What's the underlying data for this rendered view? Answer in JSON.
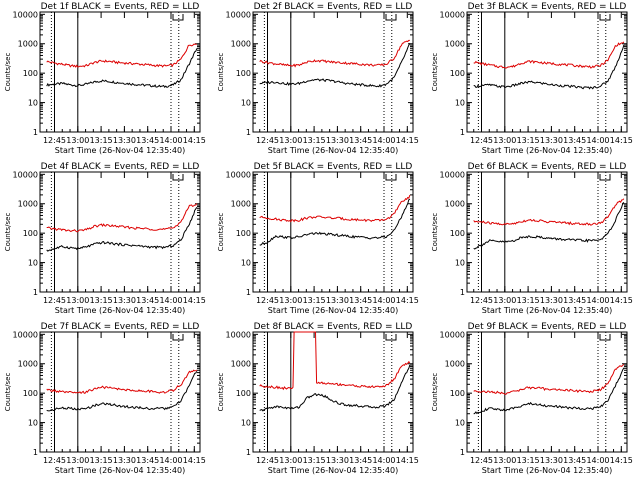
{
  "figure": {
    "background": "#ffffff",
    "colors": {
      "events": "#000000",
      "lld": "#dd0000",
      "axes": "#000000"
    }
  },
  "chart_data": [
    {
      "type": "line",
      "title": "Det 1f BLACK = Events, RED = LLD",
      "xlabel": "Start Time (26-Nov-04 12:35:40)",
      "ylabel": "Counts/sec",
      "x_ticks": [
        "12:45",
        "13:00",
        "13:15",
        "13:30",
        "13:45",
        "14:00",
        "14:15"
      ],
      "y_ticks": [
        "1",
        "10",
        "100",
        "1000",
        "10000"
      ],
      "yscale": "log",
      "ylim": [
        1,
        12000
      ],
      "xlim_minutes": [
        0,
        103
      ],
      "series": [
        {
          "name": "Events",
          "color": "#000000",
          "values": [
            40,
            42,
            45,
            40,
            38,
            42,
            50,
            55,
            52,
            48,
            45,
            42,
            40,
            38,
            36,
            35,
            40,
            60,
            200,
            700
          ]
        },
        {
          "name": "LLD",
          "color": "#dd0000",
          "values": [
            250,
            220,
            200,
            180,
            170,
            180,
            230,
            260,
            250,
            230,
            220,
            210,
            200,
            190,
            180,
            175,
            190,
            300,
            900,
            1000
          ]
        }
      ],
      "solid_lines": [
        "12:45",
        "13:00"
      ],
      "dotted_lines": [
        "12:43",
        "14:00",
        "14:05"
      ],
      "spike": null
    },
    {
      "type": "line",
      "title": "Det 2f BLACK = Events, RED = LLD",
      "xlabel": "Start Time (26-Nov-04 12:35:40)",
      "ylabel": "Counts/sec",
      "x_ticks": [
        "12:45",
        "13:00",
        "13:15",
        "13:30",
        "13:45",
        "14:00",
        "14:15"
      ],
      "y_ticks": [
        "1",
        "10",
        "100",
        "1000",
        "10000"
      ],
      "yscale": "log",
      "ylim": [
        1,
        12000
      ],
      "xlim_minutes": [
        0,
        103
      ],
      "series": [
        {
          "name": "Events",
          "color": "#000000",
          "values": [
            45,
            48,
            50,
            45,
            42,
            45,
            55,
            60,
            58,
            55,
            50,
            45,
            42,
            40,
            38,
            36,
            42,
            70,
            250,
            1000
          ]
        },
        {
          "name": "LLD",
          "color": "#dd0000",
          "values": [
            260,
            230,
            210,
            190,
            180,
            190,
            240,
            270,
            260,
            240,
            230,
            220,
            210,
            200,
            190,
            185,
            200,
            320,
            1000,
            1300
          ]
        }
      ],
      "solid_lines": [
        "12:45",
        "13:00"
      ],
      "dotted_lines": [
        "12:43",
        "14:00",
        "14:05"
      ],
      "spike": null
    },
    {
      "type": "line",
      "title": "Det 3f BLACK = Events, RED = LLD",
      "xlabel": "Start Time (26-Nov-04 12:35:40)",
      "ylabel": "Counts/sec",
      "x_ticks": [
        "12:45",
        "13:00",
        "13:15",
        "13:30",
        "13:45",
        "14:00",
        "14:15"
      ],
      "y_ticks": [
        "1",
        "10",
        "100",
        "1000",
        "10000"
      ],
      "yscale": "log",
      "ylim": [
        1,
        12000
      ],
      "xlim_minutes": [
        0,
        103
      ],
      "series": [
        {
          "name": "Events",
          "color": "#000000",
          "values": [
            35,
            38,
            40,
            36,
            34,
            38,
            45,
            50,
            48,
            44,
            40,
            38,
            36,
            34,
            32,
            32,
            36,
            55,
            180,
            900
          ]
        },
        {
          "name": "LLD",
          "color": "#dd0000",
          "values": [
            240,
            210,
            190,
            170,
            160,
            170,
            220,
            250,
            240,
            220,
            210,
            200,
            190,
            180,
            170,
            165,
            180,
            280,
            900,
            1100
          ]
        }
      ],
      "solid_lines": [
        "12:45",
        "13:00"
      ],
      "dotted_lines": [
        "12:43",
        "14:00",
        "14:05"
      ],
      "spike": null
    },
    {
      "type": "line",
      "title": "Det 4f BLACK = Events, RED = LLD",
      "xlabel": "Start Time (26-Nov-04 12:35:40)",
      "ylabel": "Counts/sec",
      "x_ticks": [
        "12:45",
        "13:00",
        "13:15",
        "13:30",
        "13:45",
        "14:00",
        "14:15"
      ],
      "y_ticks": [
        "1",
        "10",
        "100",
        "1000",
        "10000"
      ],
      "yscale": "log",
      "ylim": [
        1,
        12000
      ],
      "xlim_minutes": [
        0,
        103
      ],
      "series": [
        {
          "name": "Events",
          "color": "#000000",
          "values": [
            25,
            30,
            35,
            32,
            30,
            34,
            42,
            48,
            46,
            42,
            40,
            38,
            36,
            34,
            33,
            33,
            38,
            60,
            200,
            800
          ]
        },
        {
          "name": "LLD",
          "color": "#dd0000",
          "values": [
            150,
            140,
            130,
            120,
            120,
            130,
            170,
            190,
            180,
            170,
            160,
            150,
            145,
            140,
            135,
            135,
            150,
            250,
            800,
            1000
          ]
        }
      ],
      "solid_lines": [
        "12:45",
        "13:00"
      ],
      "dotted_lines": [
        "12:43",
        "14:00",
        "14:05"
      ],
      "spike": null
    },
    {
      "type": "line",
      "title": "Det 5f BLACK = Events, RED = LLD",
      "xlabel": "Start Time (26-Nov-04 12:35:40)",
      "ylabel": "Counts/sec",
      "x_ticks": [
        "12:45",
        "13:00",
        "13:15",
        "13:30",
        "13:45",
        "14:00",
        "14:15"
      ],
      "y_ticks": [
        "1",
        "10",
        "100",
        "1000",
        "10000"
      ],
      "yscale": "log",
      "ylim": [
        1,
        12000
      ],
      "xlim_minutes": [
        0,
        103
      ],
      "series": [
        {
          "name": "Events",
          "color": "#000000",
          "values": [
            40,
            50,
            80,
            75,
            70,
            75,
            90,
            100,
            95,
            90,
            85,
            80,
            75,
            72,
            70,
            70,
            75,
            120,
            400,
            1500
          ]
        },
        {
          "name": "LLD",
          "color": "#dd0000",
          "values": [
            350,
            330,
            300,
            280,
            270,
            280,
            330,
            360,
            350,
            330,
            320,
            300,
            290,
            280,
            270,
            270,
            290,
            450,
            1200,
            1800
          ]
        }
      ],
      "solid_lines": [
        "12:45",
        "13:00"
      ],
      "dotted_lines": [
        "12:43",
        "14:00",
        "14:05"
      ],
      "spike": null
    },
    {
      "type": "line",
      "title": "Det 6f BLACK = Events, RED = LLD",
      "xlabel": "Start Time (26-Nov-04 12:35:40)",
      "ylabel": "Counts/sec",
      "x_ticks": [
        "12:45",
        "13:00",
        "13:15",
        "13:30",
        "13:45",
        "14:00",
        "14:15"
      ],
      "y_ticks": [
        "1",
        "10",
        "100",
        "1000",
        "10000"
      ],
      "yscale": "log",
      "ylim": [
        1,
        12000
      ],
      "xlim_minutes": [
        0,
        103
      ],
      "series": [
        {
          "name": "Events",
          "color": "#000000",
          "values": [
            30,
            40,
            55,
            52,
            50,
            55,
            70,
            78,
            75,
            70,
            65,
            62,
            60,
            58,
            56,
            56,
            60,
            95,
            300,
            1200
          ]
        },
        {
          "name": "LLD",
          "color": "#dd0000",
          "values": [
            250,
            240,
            220,
            210,
            200,
            210,
            250,
            280,
            270,
            250,
            240,
            230,
            220,
            210,
            205,
            205,
            220,
            350,
            1000,
            1400
          ]
        }
      ],
      "solid_lines": [
        "12:45",
        "13:00"
      ],
      "dotted_lines": [
        "12:43",
        "14:00",
        "14:05"
      ],
      "spike": null
    },
    {
      "type": "line",
      "title": "Det 7f BLACK = Events, RED = LLD",
      "xlabel": "Start Time (26-Nov-04 12:35:40)",
      "ylabel": "Counts/sec",
      "x_ticks": [
        "12:45",
        "13:00",
        "13:15",
        "13:30",
        "13:45",
        "14:00",
        "14:15"
      ],
      "y_ticks": [
        "1",
        "10",
        "100",
        "1000",
        "10000"
      ],
      "yscale": "log",
      "ylim": [
        1,
        12000
      ],
      "xlim_minutes": [
        0,
        103
      ],
      "series": [
        {
          "name": "Events",
          "color": "#000000",
          "values": [
            25,
            28,
            32,
            30,
            28,
            30,
            38,
            44,
            42,
            38,
            35,
            33,
            32,
            30,
            30,
            30,
            34,
            55,
            180,
            600
          ]
        },
        {
          "name": "LLD",
          "color": "#dd0000",
          "values": [
            130,
            120,
            110,
            105,
            100,
            110,
            140,
            160,
            150,
            140,
            130,
            125,
            120,
            115,
            110,
            110,
            125,
            200,
            500,
            650
          ]
        }
      ],
      "solid_lines": [
        "12:45",
        "13:00"
      ],
      "dotted_lines": [
        "12:43",
        "14:00",
        "14:05"
      ],
      "spike": null
    },
    {
      "type": "line",
      "title": "Det 8f BLACK = Events, RED = LLD",
      "xlabel": "Start Time (26-Nov-04 12:35:40)",
      "ylabel": "Counts/sec",
      "x_ticks": [
        "12:45",
        "13:00",
        "13:15",
        "13:30",
        "13:45",
        "14:00",
        "14:15"
      ],
      "y_ticks": [
        "1",
        "10",
        "100",
        "1000",
        "10000"
      ],
      "yscale": "log",
      "ylim": [
        1,
        12000
      ],
      "xlim_minutes": [
        0,
        103
      ],
      "series": [
        {
          "name": "Events",
          "color": "#000000",
          "values": [
            25,
            30,
            35,
            33,
            30,
            34,
            70,
            90,
            85,
            60,
            45,
            40,
            38,
            36,
            34,
            34,
            38,
            60,
            250,
            900
          ]
        },
        {
          "name": "LLD",
          "color": "#dd0000",
          "values": [
            180,
            170,
            160,
            150,
            145,
            155,
            200,
            230,
            220,
            210,
            200,
            190,
            180,
            170,
            165,
            165,
            180,
            300,
            900,
            1100
          ]
        }
      ],
      "solid_lines": [
        "12:45",
        "13:00"
      ],
      "dotted_lines": [
        "12:43",
        "14:00",
        "14:05"
      ],
      "spike": {
        "series": "LLD",
        "from": "13:02",
        "to": "13:16",
        "peak": 10000
      }
    },
    {
      "type": "line",
      "title": "Det 9f BLACK = Events, RED = LLD",
      "xlabel": "Start Time (26-Nov-04 12:35:40)",
      "ylabel": "Counts/sec",
      "x_ticks": [
        "12:45",
        "13:00",
        "13:15",
        "13:30",
        "13:45",
        "14:00",
        "14:15"
      ],
      "y_ticks": [
        "1",
        "10",
        "100",
        "1000",
        "10000"
      ],
      "yscale": "log",
      "ylim": [
        1,
        12000
      ],
      "xlim_minutes": [
        0,
        103
      ],
      "series": [
        {
          "name": "Events",
          "color": "#000000",
          "values": [
            20,
            25,
            30,
            28,
            27,
            30,
            38,
            44,
            42,
            38,
            36,
            34,
            32,
            31,
            30,
            30,
            34,
            55,
            200,
            700
          ]
        },
        {
          "name": "LLD",
          "color": "#dd0000",
          "values": [
            120,
            115,
            110,
            105,
            100,
            110,
            135,
            155,
            150,
            140,
            135,
            130,
            125,
            120,
            115,
            115,
            130,
            210,
            700,
            900
          ]
        }
      ],
      "solid_lines": [
        "12:45",
        "13:00"
      ],
      "dotted_lines": [
        "12:43",
        "14:00",
        "14:05"
      ],
      "spike": null
    }
  ]
}
